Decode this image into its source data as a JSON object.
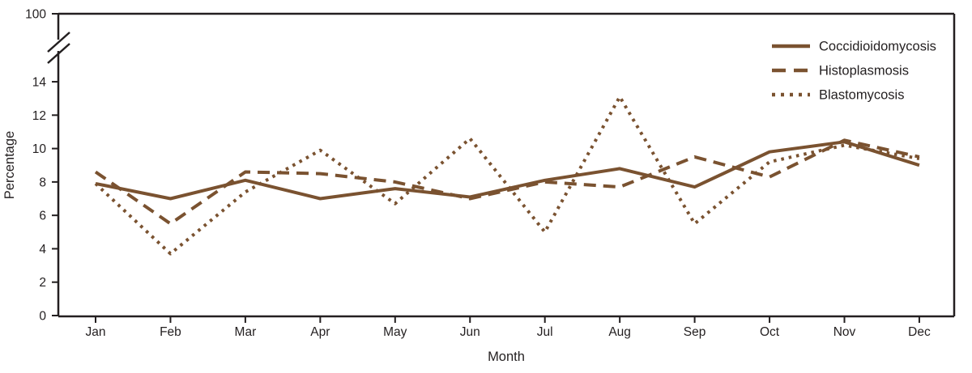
{
  "chart_data": {
    "type": "line",
    "title": "",
    "xlabel": "Month",
    "ylabel": "Percentage",
    "categories": [
      "Jan",
      "Feb",
      "Mar",
      "Apr",
      "May",
      "Jun",
      "Jul",
      "Aug",
      "Sep",
      "Oct",
      "Nov",
      "Dec"
    ],
    "y_ticks": [
      0,
      2,
      4,
      6,
      8,
      10,
      12,
      14
    ],
    "y_axis_break_upper_tick": "100",
    "ylim": [
      0,
      14
    ],
    "grid": false,
    "legend_position": "top-right",
    "line_color": "#7a5230",
    "axis_color": "#231f20",
    "series": [
      {
        "name": "Coccidioidomycosis",
        "style": "solid",
        "values": [
          7.9,
          7.0,
          8.1,
          7.0,
          7.6,
          7.1,
          8.1,
          8.8,
          7.7,
          9.8,
          10.4,
          9.0
        ]
      },
      {
        "name": "Histoplasmosis",
        "style": "dashed",
        "values": [
          8.6,
          5.5,
          8.6,
          8.5,
          8.0,
          7.0,
          8.0,
          7.7,
          9.5,
          8.3,
          10.5,
          9.5
        ]
      },
      {
        "name": "Blastomycosis",
        "style": "dotted",
        "values": [
          7.9,
          3.7,
          7.4,
          9.9,
          6.7,
          10.6,
          5.0,
          13.1,
          5.5,
          9.2,
          10.2,
          9.4
        ]
      }
    ]
  }
}
